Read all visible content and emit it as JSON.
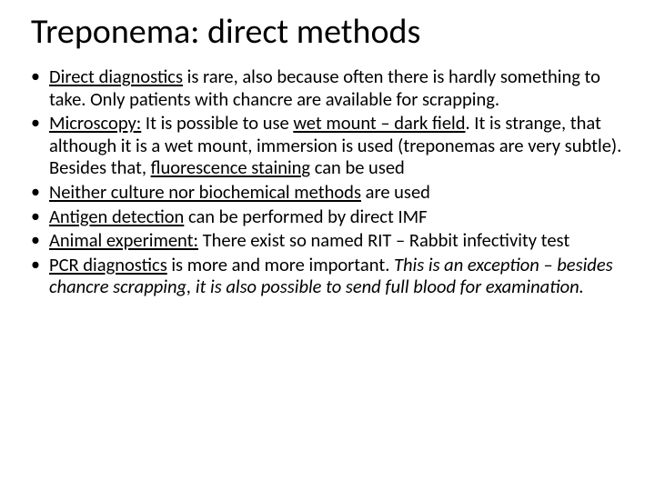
{
  "title": "Treponema: direct methods",
  "bullets": [
    {
      "segments": [
        {
          "text": "Direct diagnostics",
          "underline": true
        },
        {
          "text": " is rare, also because often there is hardly something to take. Only patients with chancre are available for scrapping."
        }
      ]
    },
    {
      "segments": [
        {
          "text": "Microscopy:",
          "underline": true
        },
        {
          "text": " It is possible to use "
        },
        {
          "text": "wet mount – dark field",
          "underline": true
        },
        {
          "text": ". It is strange, that although it is a wet mount, immersion is used (treponemas are very subtle). Besides that, "
        },
        {
          "text": "fluorescence staining",
          "underline": true
        },
        {
          "text": " can be used"
        }
      ]
    },
    {
      "segments": [
        {
          "text": "Neither culture nor biochemical methods",
          "underline": true
        },
        {
          "text": " are used"
        }
      ]
    },
    {
      "segments": [
        {
          "text": "Antigen detection",
          "underline": true
        },
        {
          "text": " can be performed by direct IMF"
        }
      ]
    },
    {
      "segments": [
        {
          "text": "Animal experiment:",
          "underline": true
        },
        {
          "text": " There exist so named RIT – Rabbit infectivity test"
        }
      ]
    },
    {
      "segments": [
        {
          "text": "PCR diagnostics",
          "underline": true
        },
        {
          "text": " is more and more important. "
        },
        {
          "text": "This is an exception – besides chancre scrapping, it is also possible to send full blood for examination.",
          "italic": true
        }
      ]
    }
  ],
  "colors": {
    "background": "#ffffff",
    "text": "#000000"
  },
  "typography": {
    "title_fontsize": 38,
    "body_fontsize": 20.5,
    "font_family": "Calibri"
  }
}
